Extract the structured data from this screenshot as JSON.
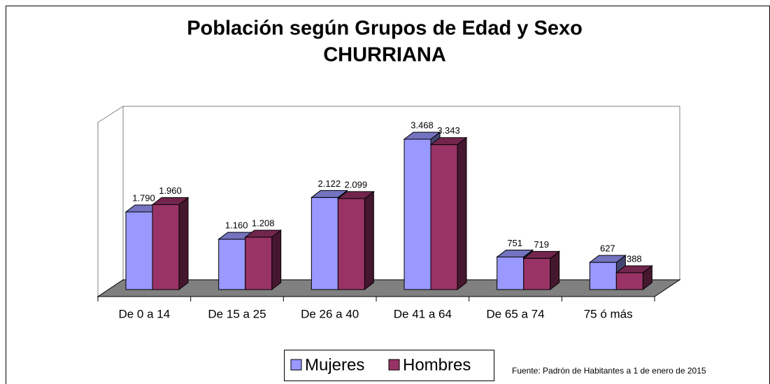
{
  "chart_data": {
    "type": "bar3d",
    "title": [
      "Población según Grupos de Edad y Sexo",
      "CHURRIANA"
    ],
    "categories": [
      "De 0 a 14",
      "De 15 a 25",
      "De 26 a 40",
      "De 41 a 64",
      "De 65 a 74",
      "75 ó más"
    ],
    "series": [
      {
        "name": "Mujeres",
        "color": "#9999ff",
        "values": [
          1790,
          1160,
          2122,
          3468,
          751,
          627
        ],
        "value_labels": [
          "1.790",
          "1.160",
          "2.122",
          "3.468",
          "751",
          "627"
        ]
      },
      {
        "name": "Hombres",
        "color": "#993366",
        "values": [
          1960,
          1208,
          2099,
          3343,
          719,
          388
        ],
        "value_labels": [
          "1.960",
          "1.208",
          "2.099",
          "3.343",
          "719",
          "388"
        ]
      }
    ],
    "ylim": [
      0,
      4000
    ],
    "source": "Fuente: Padrón de Habitantes a 1 de enero de 2015"
  }
}
